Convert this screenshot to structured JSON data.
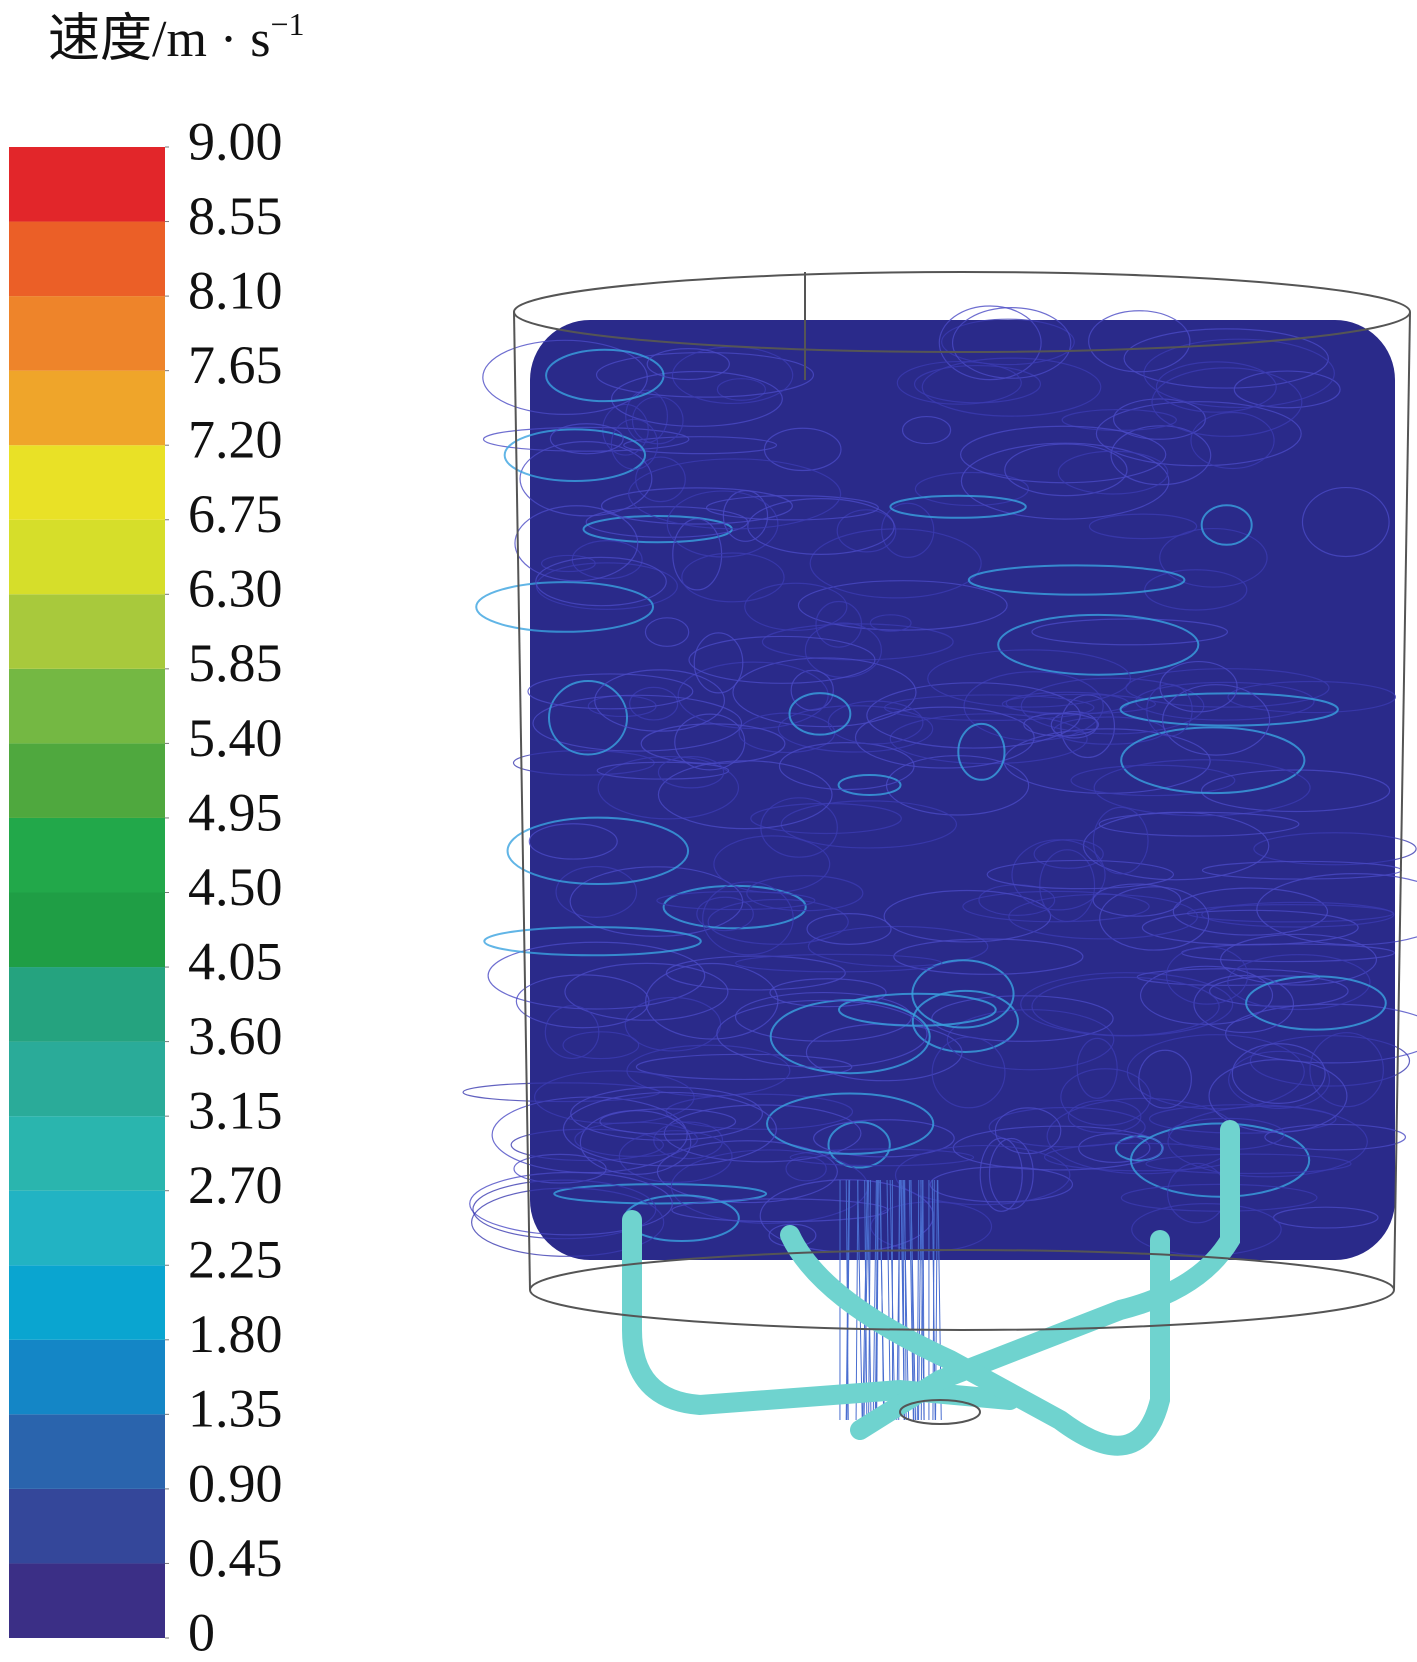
{
  "colorbar": {
    "title": "速度/m · s",
    "title_superscript": "−1",
    "ticks": [
      {
        "value": 0,
        "label": "0"
      },
      {
        "value": 0.45,
        "label": "0.45"
      },
      {
        "value": 0.9,
        "label": "0.90"
      },
      {
        "value": 1.35,
        "label": "1.35"
      },
      {
        "value": 1.8,
        "label": "1.80"
      },
      {
        "value": 2.25,
        "label": "2.25"
      },
      {
        "value": 2.7,
        "label": "2.70"
      },
      {
        "value": 3.15,
        "label": "3.15"
      },
      {
        "value": 3.6,
        "label": "3.60"
      },
      {
        "value": 4.05,
        "label": "4.05"
      },
      {
        "value": 4.5,
        "label": "4.50"
      },
      {
        "value": 4.95,
        "label": "4.95"
      },
      {
        "value": 5.4,
        "label": "5.40"
      },
      {
        "value": 5.85,
        "label": "5.85"
      },
      {
        "value": 6.3,
        "label": "6.30"
      },
      {
        "value": 6.75,
        "label": "6.75"
      },
      {
        "value": 7.2,
        "label": "7.20"
      },
      {
        "value": 7.65,
        "label": "7.65"
      },
      {
        "value": 8.1,
        "label": "8.10"
      },
      {
        "value": 8.55,
        "label": "8.55"
      },
      {
        "value": 9,
        "label": "9.00"
      }
    ],
    "band_colors": [
      "#3b2f86",
      "#34479a",
      "#2a64ad",
      "#1486c6",
      "#0aa5d0",
      "#22b3c3",
      "#2ab5ae",
      "#2aab99",
      "#25a37f",
      "#1f9e45",
      "#22a84a",
      "#4fa83e",
      "#74b843",
      "#a8c93c",
      "#d6de2a",
      "#e9e126",
      "#efa52a",
      "#ee842a",
      "#eb5f27",
      "#e2262a"
    ]
  }
}
